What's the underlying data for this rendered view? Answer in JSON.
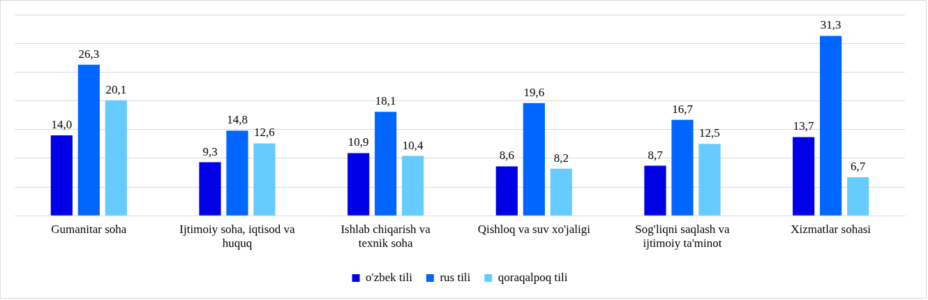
{
  "chart_data": {
    "type": "bar",
    "categories": [
      "Gumanitar soha",
      "Ijtimoiy soha, iqtisod va huquq",
      "Ishlab chiqarish va texnik soha",
      "Qishloq va suv xo'jaligi",
      "Sog'liqni saqlash va ijtimoiy ta'minot",
      "Xizmatlar sohasi"
    ],
    "series": [
      {
        "name": "o'zbek tili",
        "color": "#0000e6",
        "values": [
          14.0,
          9.3,
          10.9,
          8.6,
          8.7,
          13.7
        ],
        "value_labels": [
          "14,0",
          "9,3",
          "10,9",
          "8,6",
          "8,7",
          "13,7"
        ]
      },
      {
        "name": "rus tili",
        "color": "#0066ff",
        "values": [
          26.3,
          14.8,
          18.1,
          19.6,
          16.7,
          31.3
        ],
        "value_labels": [
          "26,3",
          "14,8",
          "18,1",
          "19,6",
          "16,7",
          "31,3"
        ]
      },
      {
        "name": "qoraqalpoq tili",
        "color": "#66ccff",
        "values": [
          20.1,
          12.6,
          10.4,
          8.2,
          12.5,
          6.7
        ],
        "value_labels": [
          "20,1",
          "12,6",
          "10,4",
          "8,2",
          "12,5",
          "6,7"
        ]
      }
    ],
    "ylim": [
      0,
      35
    ],
    "yticks": [
      {
        "value": 0,
        "label": null
      },
      {
        "value": 5,
        "label": null
      },
      {
        "value": 10,
        "label": null
      },
      {
        "value": 15,
        "label": null
      },
      {
        "value": 20,
        "label": null
      },
      {
        "value": 25,
        "label": null
      },
      {
        "value": 30,
        "label": null
      },
      {
        "value": 35,
        "label": null
      }
    ],
    "tick_labels": "x",
    "grid": "y",
    "legend": "bottom"
  }
}
